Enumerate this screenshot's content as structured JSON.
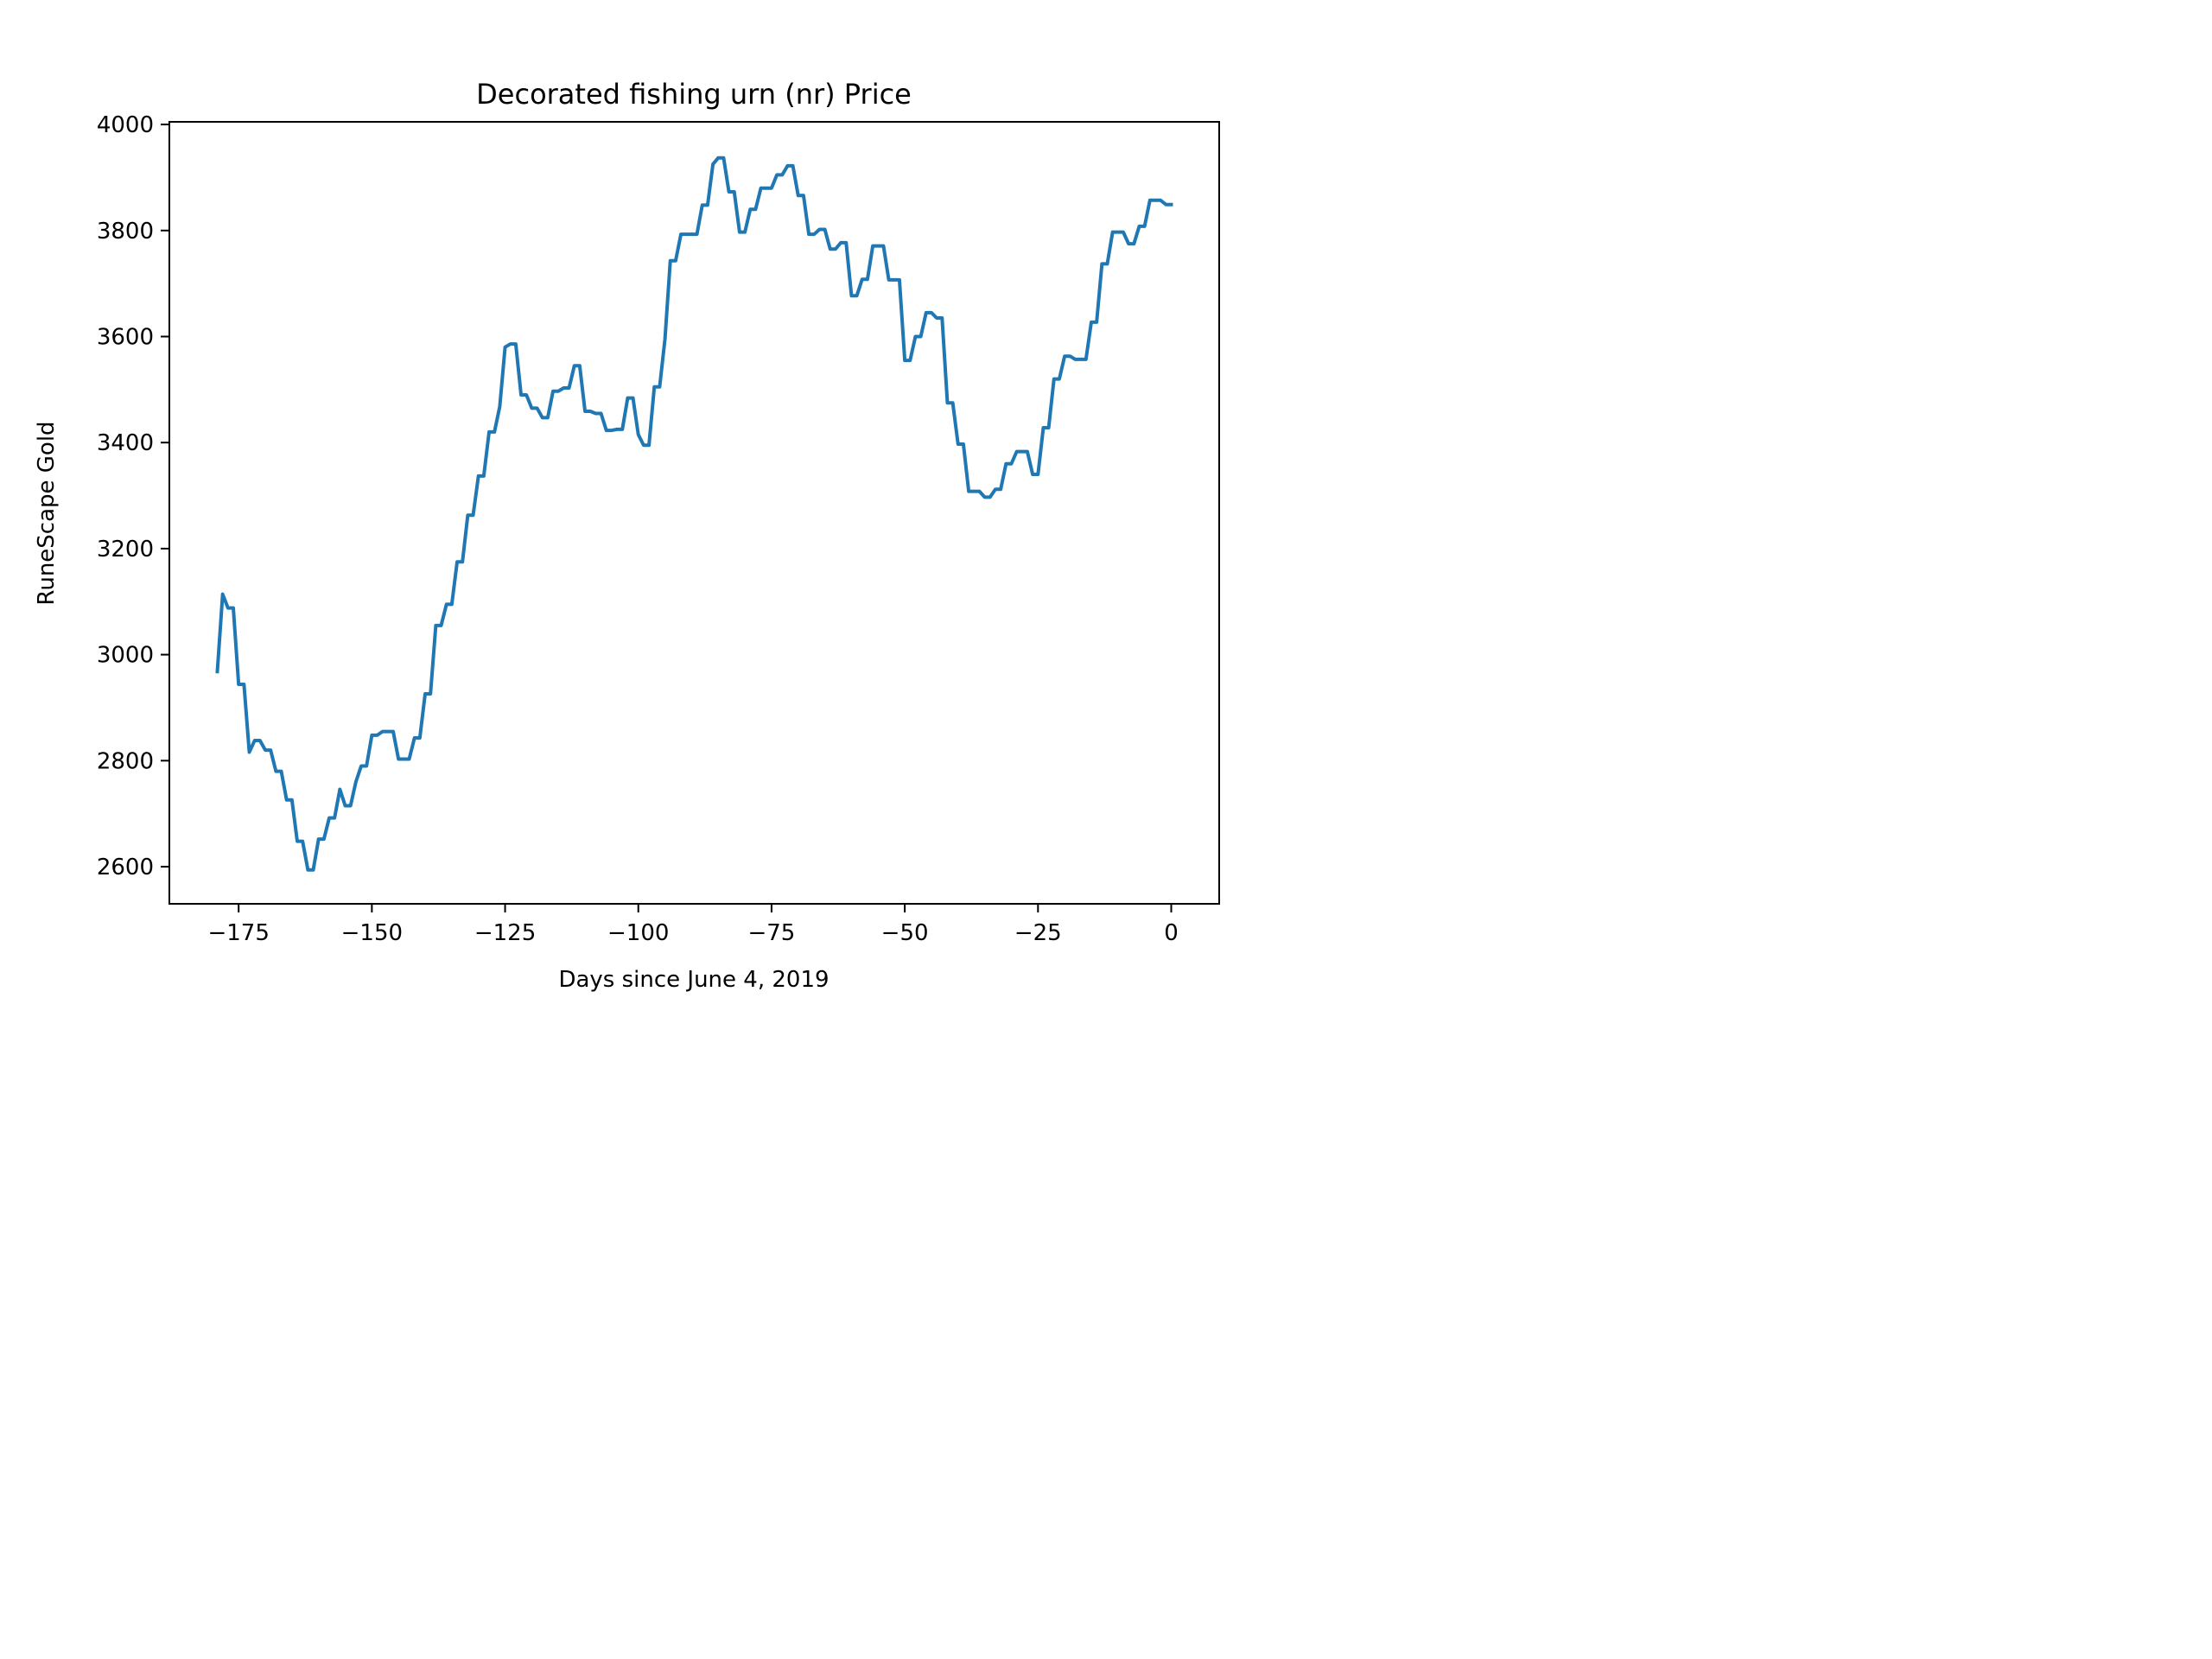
{
  "chart_data": {
    "type": "line",
    "title": "Decorated fishing urn (nr) Price",
    "xlabel": "Days since June 4, 2019",
    "ylabel": "RuneScape Gold",
    "xlim": [
      -188,
      9
    ],
    "ylim": [
      2530,
      4005
    ],
    "xticks": [
      -175,
      -150,
      -125,
      -100,
      -75,
      -50,
      -25,
      0
    ],
    "xtick_labels": [
      "−175",
      "−150",
      "−125",
      "−100",
      "−75",
      "−50",
      "−25",
      "0"
    ],
    "yticks": [
      2600,
      2800,
      3000,
      3200,
      3400,
      3600,
      3800,
      4000
    ],
    "ytick_labels": [
      "2600",
      "2800",
      "3000",
      "3200",
      "3400",
      "3600",
      "3800",
      "4000"
    ],
    "grid": false,
    "series": [
      {
        "color": "#1f77b4",
        "x": [
          -179,
          -178,
          -177,
          -176,
          -175,
          -174,
          -173,
          -172,
          -171,
          -170,
          -169,
          -168,
          -167,
          -166,
          -165,
          -164,
          -163,
          -162,
          -161,
          -160,
          -159,
          -158,
          -157,
          -156,
          -155,
          -154,
          -153,
          -152,
          -151,
          -150,
          -149,
          -148,
          -147,
          -146,
          -145,
          -144,
          -143,
          -142,
          -141,
          -140,
          -139,
          -138,
          -137,
          -136,
          -135,
          -134,
          -133,
          -132,
          -131,
          -130,
          -129,
          -128,
          -127,
          -126,
          -125,
          -124,
          -123,
          -122,
          -121,
          -120,
          -119,
          -118,
          -117,
          -116,
          -115,
          -114,
          -113,
          -112,
          -111,
          -110,
          -109,
          -108,
          -107,
          -106,
          -105,
          -104,
          -103,
          -102,
          -101,
          -100,
          -99,
          -98,
          -97,
          -96,
          -95,
          -94,
          -93,
          -92,
          -91,
          -90,
          -89,
          -88,
          -87,
          -86,
          -85,
          -84,
          -83,
          -82,
          -81,
          -80,
          -79,
          -78,
          -77,
          -76,
          -75,
          -74,
          -73,
          -72,
          -71,
          -70,
          -69,
          -68,
          -67,
          -66,
          -65,
          -64,
          -63,
          -62,
          -61,
          -60,
          -59,
          -58,
          -57,
          -56,
          -55,
          -54,
          -53,
          -52,
          -51,
          -50,
          -49,
          -48,
          -47,
          -46,
          -45,
          -44,
          -43,
          -42,
          -41,
          -40,
          -39,
          -38,
          -37,
          -36,
          -35,
          -34,
          -33,
          -32,
          -31,
          -30,
          -29,
          -28,
          -27,
          -26,
          -25,
          -24,
          -23,
          -22,
          -21,
          -20,
          -19,
          -18,
          -17,
          -16,
          -15,
          -14,
          -13,
          -12,
          -11,
          -10,
          -9,
          -8,
          -7,
          -6,
          -5,
          -4,
          -3,
          -2,
          -1,
          0
        ],
        "y": [
          2968,
          3114,
          3088,
          3088,
          2944,
          2944,
          2816,
          2838,
          2838,
          2820,
          2820,
          2780,
          2780,
          2726,
          2726,
          2648,
          2648,
          2594,
          2594,
          2652,
          2652,
          2692,
          2692,
          2746,
          2715,
          2715,
          2760,
          2790,
          2790,
          2848,
          2848,
          2855,
          2855,
          2855,
          2803,
          2803,
          2803,
          2843,
          2843,
          2926,
          2926,
          3055,
          3055,
          3095,
          3095,
          3175,
          3175,
          3263,
          3263,
          3337,
          3337,
          3420,
          3420,
          3468,
          3580,
          3586,
          3586,
          3490,
          3490,
          3465,
          3465,
          3447,
          3447,
          3497,
          3497,
          3503,
          3503,
          3545,
          3545,
          3459,
          3459,
          3455,
          3455,
          3423,
          3423,
          3425,
          3425,
          3484,
          3484,
          3415,
          3395,
          3395,
          3505,
          3505,
          3595,
          3743,
          3743,
          3793,
          3793,
          3793,
          3793,
          3848,
          3848,
          3925,
          3937,
          3937,
          3873,
          3873,
          3797,
          3797,
          3840,
          3840,
          3880,
          3880,
          3880,
          3905,
          3905,
          3922,
          3922,
          3866,
          3866,
          3793,
          3793,
          3802,
          3802,
          3765,
          3765,
          3777,
          3777,
          3677,
          3677,
          3708,
          3708,
          3771,
          3771,
          3771,
          3707,
          3707,
          3707,
          3555,
          3555,
          3600,
          3600,
          3645,
          3645,
          3635,
          3635,
          3475,
          3475,
          3397,
          3397,
          3308,
          3308,
          3308,
          3297,
          3297,
          3312,
          3312,
          3360,
          3360,
          3383,
          3383,
          3383,
          3340,
          3340,
          3428,
          3428,
          3520,
          3520,
          3563,
          3563,
          3557,
          3557,
          3557,
          3627,
          3627,
          3737,
          3737,
          3797,
          3797,
          3797,
          3775,
          3775,
          3808,
          3808,
          3857,
          3857,
          3857,
          3849,
          3849
        ]
      }
    ]
  }
}
